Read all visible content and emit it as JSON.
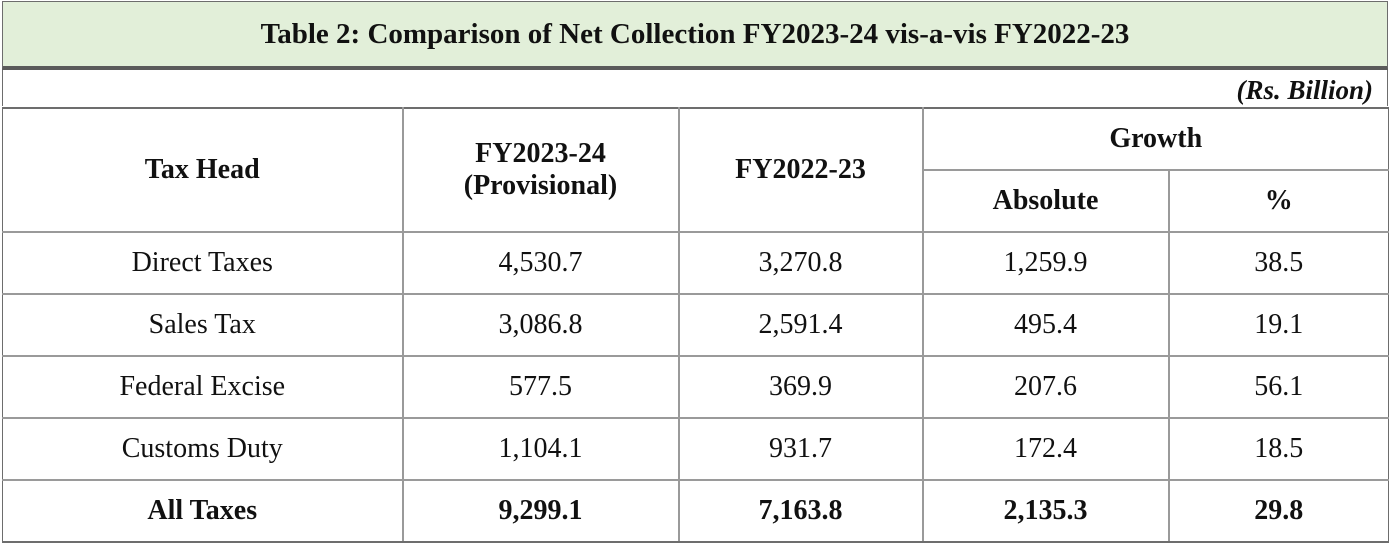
{
  "title": "Table 2: Comparison of Net Collection FY2023-24 vis-a-vis FY2022-23",
  "units": "(Rs. Billion)",
  "headers": {
    "tax_head": "Tax Head",
    "fy2024_line1": "FY2023-24",
    "fy2024_line2": "(Provisional)",
    "fy2023": "FY2022-23",
    "growth": "Growth",
    "absolute": "Absolute",
    "percent": "%"
  },
  "rows": [
    {
      "head": "Direct Taxes",
      "fy2024": "4,530.7",
      "fy2023": "3,270.8",
      "absolute": "1,259.9",
      "percent": "38.5"
    },
    {
      "head": "Sales Tax",
      "fy2024": "3,086.8",
      "fy2023": "2,591.4",
      "absolute": "495.4",
      "percent": "19.1"
    },
    {
      "head": "Federal Excise",
      "fy2024": "577.5",
      "fy2023": "369.9",
      "absolute": "207.6",
      "percent": "56.1"
    },
    {
      "head": "Customs Duty",
      "fy2024": "1,104.1",
      "fy2023": "931.7",
      "absolute": "172.4",
      "percent": "18.5"
    },
    {
      "head": "All Taxes",
      "fy2024": "9,299.1",
      "fy2023": "7,163.8",
      "absolute": "2,135.3",
      "percent": "29.8"
    }
  ],
  "colors": {
    "title_background": "#e2efd9",
    "border": "#9a9a9a"
  }
}
